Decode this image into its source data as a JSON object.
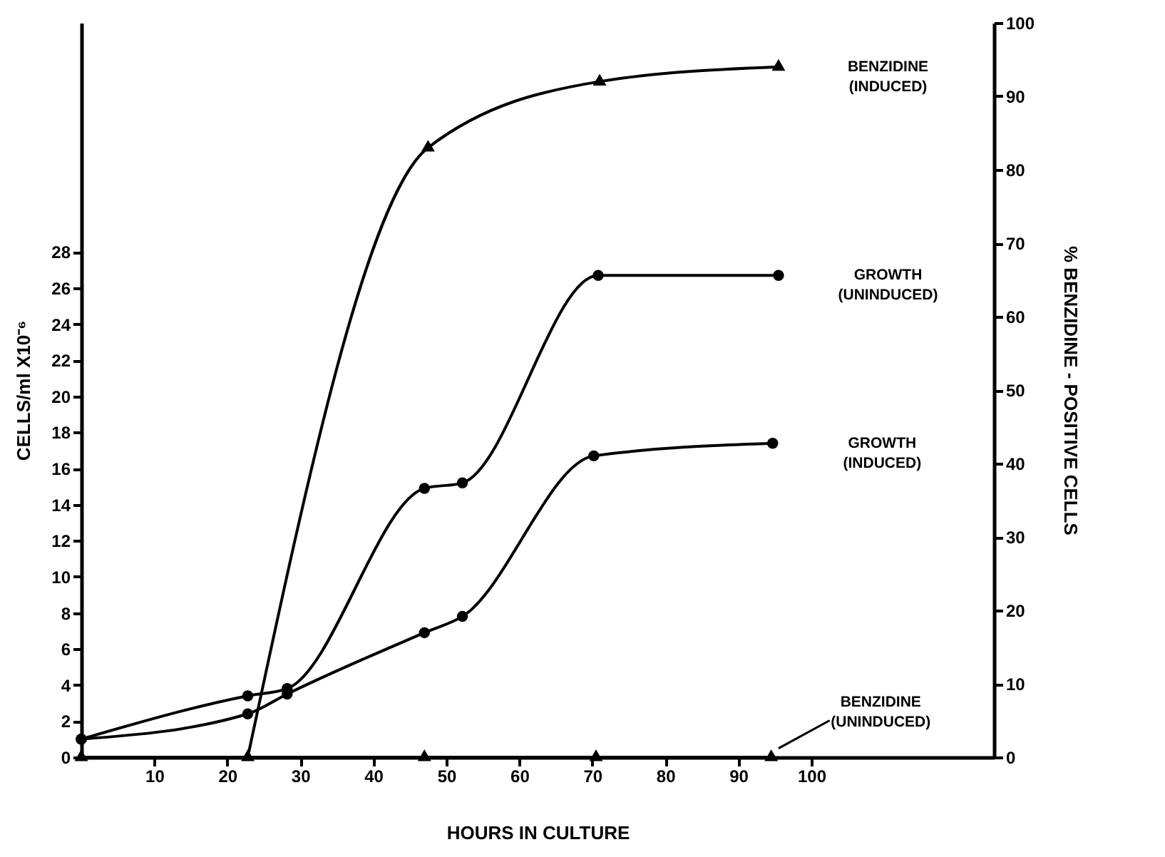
{
  "chart_data": {
    "type": "line",
    "xlabel": "HOURS IN CULTURE",
    "ylabel": "CELLS/ml X10⁻⁶",
    "y2label": "% BENZIDINE - POSITIVE CELLS",
    "xlim": [
      0,
      125
    ],
    "xticks": [
      10,
      20,
      30,
      40,
      50,
      60,
      70,
      80,
      90,
      100
    ],
    "ylim": [
      0,
      40.7
    ],
    "yticks": [
      0,
      2,
      4,
      6,
      8,
      10,
      12,
      14,
      16,
      18,
      20,
      22,
      24,
      26,
      28
    ],
    "y2lim": [
      0,
      100
    ],
    "y2ticks": [
      0,
      10,
      20,
      30,
      40,
      50,
      60,
      70,
      80,
      90,
      100
    ],
    "grid": false,
    "series": [
      {
        "name": "BENZIDINE (INDUCED)",
        "color": "#000000",
        "axis": "y2",
        "marker": "triangle",
        "x": [
          22.8,
          47.5,
          71,
          95.5
        ],
        "values": [
          0,
          83,
          92,
          94
        ]
      },
      {
        "name": "GROWTH (UNINDUCED)",
        "color": "#000000",
        "marker": "circle",
        "x": [
          0,
          22.8,
          28.2,
          47,
          52.2,
          70.8,
          95.5
        ],
        "values": [
          1.0,
          3.4,
          3.8,
          14.9,
          15.2,
          26.7,
          26.7
        ]
      },
      {
        "name": "GROWTH (INDUCED)",
        "color": "#000000",
        "marker": "circle",
        "x": [
          0,
          22.8,
          28.2,
          47,
          52.2,
          70.2,
          94.7
        ],
        "values": [
          1.0,
          2.4,
          3.5,
          6.9,
          7.8,
          16.7,
          17.4
        ]
      },
      {
        "name": "BENZIDINE (UNINDUCED)",
        "color": "#000000",
        "axis": "y2",
        "marker": "triangle",
        "x": [
          0,
          47,
          70.5,
          94.5
        ],
        "values": [
          0,
          0,
          0,
          0
        ]
      }
    ]
  }
}
